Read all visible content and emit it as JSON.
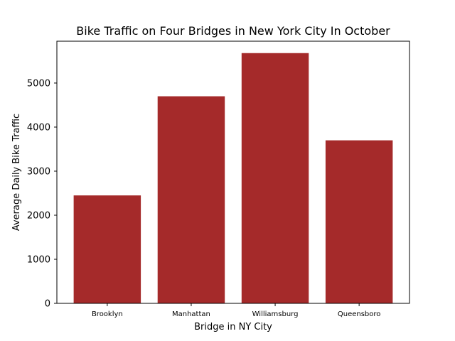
{
  "chart_data": {
    "type": "bar",
    "title": "Bike Traffic on Four Bridges in New York City In October",
    "xlabel": "Bridge in NY City",
    "ylabel": "Average Daily Bike Traffic",
    "categories": [
      "Brooklyn",
      "Manhattan",
      "Williamsburg",
      "Queensboro"
    ],
    "values": [
      2450,
      4700,
      5680,
      3700
    ],
    "ylim": [
      0,
      5950
    ],
    "yticks": [
      0,
      1000,
      2000,
      3000,
      4000,
      5000
    ],
    "bar_color": "#a52a2a",
    "grid": false,
    "legend": "none"
  }
}
